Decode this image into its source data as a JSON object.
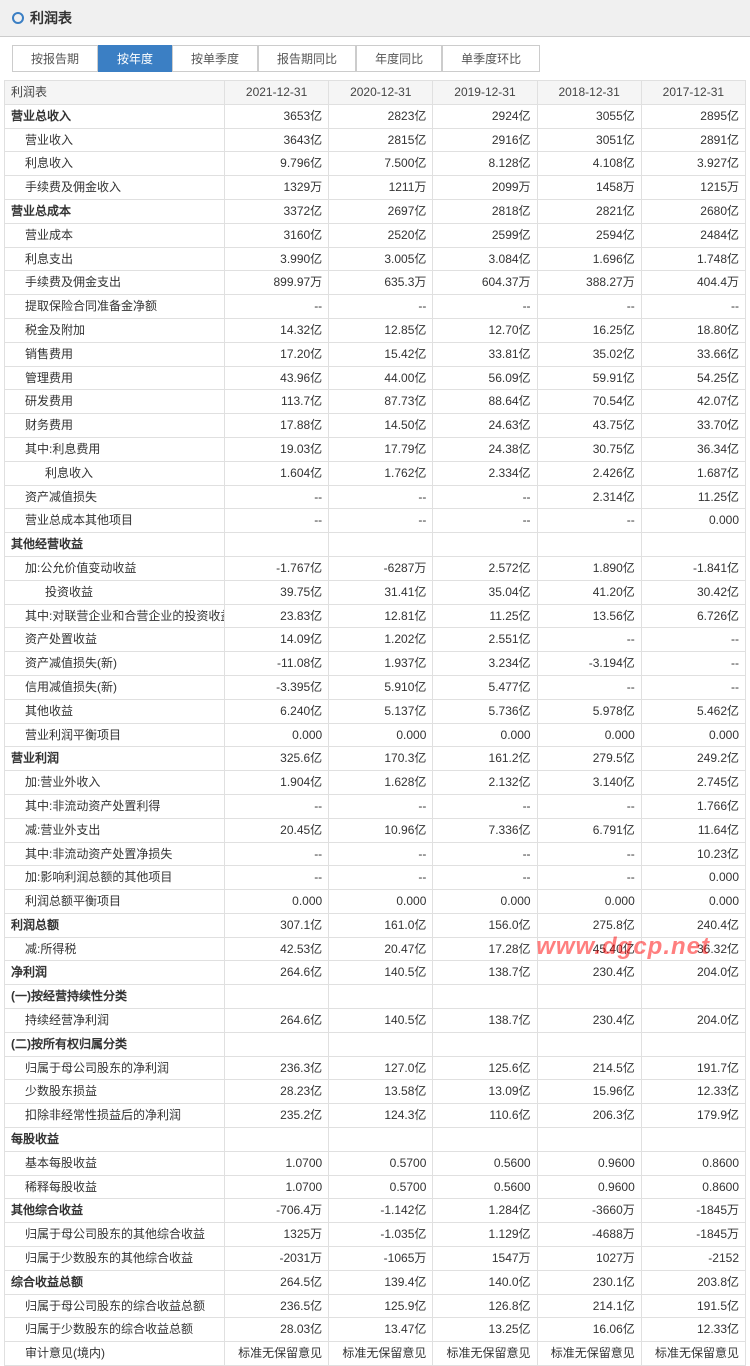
{
  "header": {
    "title": "利润表"
  },
  "tabs": [
    "按报告期",
    "按年度",
    "按单季度",
    "报告期同比",
    "年度同比",
    "单季度环比"
  ],
  "activeTab": 1,
  "tableTitle": "利润表",
  "columns": [
    "2021-12-31",
    "2020-12-31",
    "2019-12-31",
    "2018-12-31",
    "2017-12-31"
  ],
  "rows": [
    {
      "l": "营业总收入",
      "s": 1,
      "v": [
        "3653亿",
        "2823亿",
        "2924亿",
        "3055亿",
        "2895亿"
      ]
    },
    {
      "l": "营业收入",
      "i": 1,
      "v": [
        "3643亿",
        "2815亿",
        "2916亿",
        "3051亿",
        "2891亿"
      ]
    },
    {
      "l": "利息收入",
      "i": 1,
      "v": [
        "9.796亿",
        "7.500亿",
        "8.128亿",
        "4.108亿",
        "3.927亿"
      ]
    },
    {
      "l": "手续费及佣金收入",
      "i": 1,
      "v": [
        "1329万",
        "1211万",
        "2099万",
        "1458万",
        "1215万"
      ]
    },
    {
      "l": "营业总成本",
      "s": 1,
      "v": [
        "3372亿",
        "2697亿",
        "2818亿",
        "2821亿",
        "2680亿"
      ]
    },
    {
      "l": "营业成本",
      "i": 1,
      "v": [
        "3160亿",
        "2520亿",
        "2599亿",
        "2594亿",
        "2484亿"
      ]
    },
    {
      "l": "利息支出",
      "i": 1,
      "v": [
        "3.990亿",
        "3.005亿",
        "3.084亿",
        "1.696亿",
        "1.748亿"
      ]
    },
    {
      "l": "手续费及佣金支出",
      "i": 1,
      "v": [
        "899.97万",
        "635.3万",
        "604.37万",
        "388.27万",
        "404.4万"
      ]
    },
    {
      "l": "提取保险合同准备金净额",
      "i": 1,
      "v": [
        "--",
        "--",
        "--",
        "--",
        "--"
      ]
    },
    {
      "l": "税金及附加",
      "i": 1,
      "v": [
        "14.32亿",
        "12.85亿",
        "12.70亿",
        "16.25亿",
        "18.80亿"
      ]
    },
    {
      "l": "销售费用",
      "i": 1,
      "v": [
        "17.20亿",
        "15.42亿",
        "33.81亿",
        "35.02亿",
        "33.66亿"
      ]
    },
    {
      "l": "管理费用",
      "i": 1,
      "v": [
        "43.96亿",
        "44.00亿",
        "56.09亿",
        "59.91亿",
        "54.25亿"
      ]
    },
    {
      "l": "研发费用",
      "i": 1,
      "v": [
        "113.7亿",
        "87.73亿",
        "88.64亿",
        "70.54亿",
        "42.07亿"
      ]
    },
    {
      "l": "财务费用",
      "i": 1,
      "v": [
        "17.88亿",
        "14.50亿",
        "24.63亿",
        "43.75亿",
        "33.70亿"
      ]
    },
    {
      "l": "其中:利息费用",
      "i": 1,
      "v": [
        "19.03亿",
        "17.79亿",
        "24.38亿",
        "30.75亿",
        "36.34亿"
      ]
    },
    {
      "l": "利息收入",
      "i": 2,
      "v": [
        "1.604亿",
        "1.762亿",
        "2.334亿",
        "2.426亿",
        "1.687亿"
      ]
    },
    {
      "l": "资产减值损失",
      "i": 1,
      "v": [
        "--",
        "--",
        "--",
        "2.314亿",
        "11.25亿"
      ]
    },
    {
      "l": "营业总成本其他项目",
      "i": 1,
      "v": [
        "--",
        "--",
        "--",
        "--",
        "0.000"
      ]
    },
    {
      "l": "其他经营收益",
      "s": 1,
      "v": [
        "",
        "",
        "",
        "",
        ""
      ]
    },
    {
      "l": "加:公允价值变动收益",
      "i": 1,
      "v": [
        "-1.767亿",
        "-6287万",
        "2.572亿",
        "1.890亿",
        "-1.841亿"
      ]
    },
    {
      "l": "投资收益",
      "i": 2,
      "v": [
        "39.75亿",
        "31.41亿",
        "35.04亿",
        "41.20亿",
        "30.42亿"
      ]
    },
    {
      "l": "其中:对联营企业和合营企业的投资收益",
      "i": 1,
      "v": [
        "23.83亿",
        "12.81亿",
        "11.25亿",
        "13.56亿",
        "6.726亿"
      ]
    },
    {
      "l": "资产处置收益",
      "i": 1,
      "v": [
        "14.09亿",
        "1.202亿",
        "2.551亿",
        "--",
        "--"
      ]
    },
    {
      "l": "资产减值损失(新)",
      "i": 1,
      "v": [
        "-11.08亿",
        "1.937亿",
        "3.234亿",
        "-3.194亿",
        "--"
      ]
    },
    {
      "l": "信用减值损失(新)",
      "i": 1,
      "v": [
        "-3.395亿",
        "5.910亿",
        "5.477亿",
        "--",
        "--"
      ]
    },
    {
      "l": "其他收益",
      "i": 1,
      "v": [
        "6.240亿",
        "5.137亿",
        "5.736亿",
        "5.978亿",
        "5.462亿"
      ]
    },
    {
      "l": "营业利润平衡项目",
      "i": 1,
      "v": [
        "0.000",
        "0.000",
        "0.000",
        "0.000",
        "0.000"
      ]
    },
    {
      "l": "营业利润",
      "s": 1,
      "v": [
        "325.6亿",
        "170.3亿",
        "161.2亿",
        "279.5亿",
        "249.2亿"
      ]
    },
    {
      "l": "加:营业外收入",
      "i": 1,
      "v": [
        "1.904亿",
        "1.628亿",
        "2.132亿",
        "3.140亿",
        "2.745亿"
      ]
    },
    {
      "l": "其中:非流动资产处置利得",
      "i": 1,
      "v": [
        "--",
        "--",
        "--",
        "--",
        "1.766亿"
      ]
    },
    {
      "l": "减:营业外支出",
      "i": 1,
      "v": [
        "20.45亿",
        "10.96亿",
        "7.336亿",
        "6.791亿",
        "11.64亿"
      ]
    },
    {
      "l": "其中:非流动资产处置净损失",
      "i": 1,
      "v": [
        "--",
        "--",
        "--",
        "--",
        "10.23亿"
      ]
    },
    {
      "l": "加:影响利润总额的其他项目",
      "i": 1,
      "v": [
        "--",
        "--",
        "--",
        "--",
        "0.000"
      ]
    },
    {
      "l": "利润总额平衡项目",
      "i": 1,
      "v": [
        "0.000",
        "0.000",
        "0.000",
        "0.000",
        "0.000"
      ]
    },
    {
      "l": "利润总额",
      "s": 1,
      "v": [
        "307.1亿",
        "161.0亿",
        "156.0亿",
        "275.8亿",
        "240.4亿"
      ]
    },
    {
      "l": "减:所得税",
      "i": 1,
      "v": [
        "42.53亿",
        "20.47亿",
        "17.28亿",
        "45.40亿",
        "36.32亿"
      ]
    },
    {
      "l": "净利润",
      "s": 1,
      "v": [
        "264.6亿",
        "140.5亿",
        "138.7亿",
        "230.4亿",
        "204.0亿"
      ]
    },
    {
      "l": "(一)按经营持续性分类",
      "s": 1,
      "v": [
        "",
        "",
        "",
        "",
        ""
      ]
    },
    {
      "l": "持续经营净利润",
      "i": 1,
      "v": [
        "264.6亿",
        "140.5亿",
        "138.7亿",
        "230.4亿",
        "204.0亿"
      ]
    },
    {
      "l": "(二)按所有权归属分类",
      "s": 1,
      "v": [
        "",
        "",
        "",
        "",
        ""
      ]
    },
    {
      "l": "归属于母公司股东的净利润",
      "i": 1,
      "v": [
        "236.3亿",
        "127.0亿",
        "125.6亿",
        "214.5亿",
        "191.7亿"
      ]
    },
    {
      "l": "少数股东损益",
      "i": 1,
      "v": [
        "28.23亿",
        "13.58亿",
        "13.09亿",
        "15.96亿",
        "12.33亿"
      ]
    },
    {
      "l": "扣除非经常性损益后的净利润",
      "i": 1,
      "v": [
        "235.2亿",
        "124.3亿",
        "110.6亿",
        "206.3亿",
        "179.9亿"
      ]
    },
    {
      "l": "每股收益",
      "s": 1,
      "v": [
        "",
        "",
        "",
        "",
        ""
      ]
    },
    {
      "l": "基本每股收益",
      "i": 1,
      "v": [
        "1.0700",
        "0.5700",
        "0.5600",
        "0.9600",
        "0.8600"
      ]
    },
    {
      "l": "稀释每股收益",
      "i": 1,
      "v": [
        "1.0700",
        "0.5700",
        "0.5600",
        "0.9600",
        "0.8600"
      ]
    },
    {
      "l": "其他综合收益",
      "s": 1,
      "v": [
        "-706.4万",
        "-1.142亿",
        "1.284亿",
        "-3660万",
        "-1845万"
      ]
    },
    {
      "l": "归属于母公司股东的其他综合收益",
      "i": 1,
      "v": [
        "1325万",
        "-1.035亿",
        "1.129亿",
        "-4688万",
        "-1845万"
      ]
    },
    {
      "l": "归属于少数股东的其他综合收益",
      "i": 1,
      "v": [
        "-2031万",
        "-1065万",
        "1547万",
        "1027万",
        "-2152"
      ]
    },
    {
      "l": "综合收益总额",
      "s": 1,
      "v": [
        "264.5亿",
        "139.4亿",
        "140.0亿",
        "230.1亿",
        "203.8亿"
      ]
    },
    {
      "l": "归属于母公司股东的综合收益总额",
      "i": 1,
      "v": [
        "236.5亿",
        "125.9亿",
        "126.8亿",
        "214.1亿",
        "191.5亿"
      ]
    },
    {
      "l": "归属于少数股东的综合收益总额",
      "i": 1,
      "v": [
        "28.03亿",
        "13.47亿",
        "13.25亿",
        "16.06亿",
        "12.33亿"
      ]
    },
    {
      "l": "审计意见(境内)",
      "i": 1,
      "v": [
        "标准无保留意见",
        "标准无保留意见",
        "标准无保留意见",
        "标准无保留意见",
        "标准无保留意见"
      ]
    }
  ],
  "watermark": "www.dgcp.net"
}
